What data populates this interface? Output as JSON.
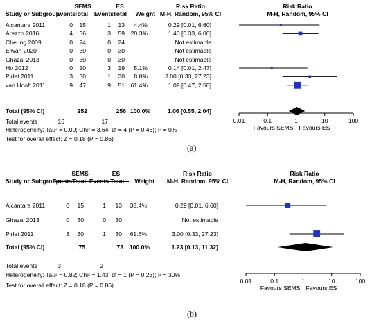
{
  "chart_data": [
    {
      "type": "forest",
      "panel": "(a)",
      "headers": {
        "group1": "SEMS",
        "group2": "ES",
        "study": "Study or Subgroup",
        "events": "Events",
        "total": "Total",
        "weight": "Weight",
        "rr_title": "Risk Ratio",
        "rr_method": "M-H, Random, 95% CI",
        "plot_title": "Risk Ratio",
        "plot_method": "M-H, Random, 95% CI"
      },
      "studies": [
        {
          "name": "Alcantara 2011",
          "e1": "0",
          "n1": "15",
          "e2": "1",
          "n2": "13",
          "weight": "4.4%",
          "ci_text": "0.29 [0.01, 6.60]",
          "rr": 0.29,
          "lo": 0.01,
          "hi": 6.6
        },
        {
          "name": "Arezzo 2016",
          "e1": "4",
          "n1": "56",
          "e2": "3",
          "n2": "59",
          "weight": "20.3%",
          "ci_text": "1.40 [0.33, 6.00]",
          "rr": 1.4,
          "lo": 0.33,
          "hi": 6.0
        },
        {
          "name": "Cheung 2009",
          "e1": "0",
          "n1": "24",
          "e2": "0",
          "n2": "24",
          "weight": "",
          "ci_text": "Not estimable",
          "rr": null,
          "lo": null,
          "hi": null
        },
        {
          "name": "Elwan 2020",
          "e1": "0",
          "n1": "30",
          "e2": "0",
          "n2": "30",
          "weight": "",
          "ci_text": "Not estimable",
          "rr": null,
          "lo": null,
          "hi": null
        },
        {
          "name": "Ghazal 2013",
          "e1": "0",
          "n1": "30",
          "e2": "0",
          "n2": "30",
          "weight": "",
          "ci_text": "Not estimable",
          "rr": null,
          "lo": null,
          "hi": null
        },
        {
          "name": "Ho 2012",
          "e1": "0",
          "n1": "20",
          "e2": "3",
          "n2": "19",
          "weight": "5.1%",
          "ci_text": "0.14 [0.01, 2.47]",
          "rr": 0.14,
          "lo": 0.01,
          "hi": 2.47
        },
        {
          "name": "Pirlet 2011",
          "e1": "3",
          "n1": "30",
          "e2": "1",
          "n2": "30",
          "weight": "8.8%",
          "ci_text": "3.00 [0.33, 27.23]",
          "rr": 3.0,
          "lo": 0.33,
          "hi": 27.23
        },
        {
          "name": "van Hooft 2011",
          "e1": "9",
          "n1": "47",
          "e2": "9",
          "n2": "51",
          "weight": "61.4%",
          "ci_text": "1.09 [0.47, 2.50]",
          "rr": 1.09,
          "lo": 0.47,
          "hi": 2.5
        }
      ],
      "total": {
        "label": "Total (95% CI)",
        "n1": "252",
        "n2": "256",
        "weight": "100.0%",
        "ci_text": "1.06 [0.55, 2.04]",
        "rr": 1.06,
        "lo": 0.55,
        "hi": 2.04
      },
      "total_events": {
        "label": "Total events",
        "e1": "16",
        "e2": "17"
      },
      "heterogeneity": "Heterogeneity: Tau² = 0.00; Chi² = 3.64, df = 4 (P = 0.46); I² = 0%",
      "overall_effect": "Test for overall effect: Z = 0.18 (P = 0.86)",
      "axis": {
        "ticks": [
          "0.01",
          "0.1",
          "1",
          "10",
          "100"
        ],
        "tick_values": [
          0.01,
          0.1,
          1,
          10,
          100
        ],
        "scale": "log"
      },
      "favours_left": "Favours SEMS",
      "favours_right": "Favours ES"
    },
    {
      "type": "forest",
      "panel": "(b)",
      "headers": {
        "group1": "SEMS",
        "group2": "ES",
        "study": "Study or Subgroup",
        "events": "Events",
        "total": "Total",
        "weight": "Weight",
        "rr_title": "Risk Ratio",
        "rr_method": "M-H, Random, 95% CI",
        "plot_title": "Risk Ratio",
        "plot_method": "M-H, Random, 95% CI"
      },
      "studies": [
        {
          "name": "Alcantara 2011",
          "e1": "0",
          "n1": "15",
          "e2": "1",
          "n2": "13",
          "weight": "38.4%",
          "ci_text": "0.29 [0.01, 6.60]",
          "rr": 0.29,
          "lo": 0.01,
          "hi": 6.6
        },
        {
          "name": "Ghazal 2013",
          "e1": "0",
          "n1": "30",
          "e2": "0",
          "n2": "30",
          "weight": "",
          "ci_text": "Not estimable",
          "rr": null,
          "lo": null,
          "hi": null
        },
        {
          "name": "Pirlet 2011",
          "e1": "3",
          "n1": "30",
          "e2": "1",
          "n2": "30",
          "weight": "61.6%",
          "ci_text": "3.00 [0.33, 27.23]",
          "rr": 3.0,
          "lo": 0.33,
          "hi": 27.23
        }
      ],
      "total": {
        "label": "Total (95% CI)",
        "n1": "75",
        "n2": "73",
        "weight": "100.0%",
        "ci_text": "1.23 [0.13, 11.32]",
        "rr": 1.23,
        "lo": 0.13,
        "hi": 11.32
      },
      "total_events": {
        "label": "Total events",
        "e1": "3",
        "e2": "2"
      },
      "heterogeneity": "Heterogeneity: Tau² = 0.82; Chi² = 1.43, df = 1 (P = 0.23); I² = 30%",
      "overall_effect": "Test for overall effect: Z = 0.18 (P = 0.86)",
      "axis": {
        "ticks": [
          "0.01",
          "0.1",
          "1",
          "10",
          "100"
        ],
        "tick_values": [
          0.01,
          0.1,
          1,
          10,
          100
        ],
        "scale": "log"
      },
      "favours_left": "Favours SEMS",
      "favours_right": "Favours ES"
    }
  ],
  "colors": {
    "marker": "#1f33c8",
    "ci_line": "#000000",
    "diamond": "#000000"
  }
}
